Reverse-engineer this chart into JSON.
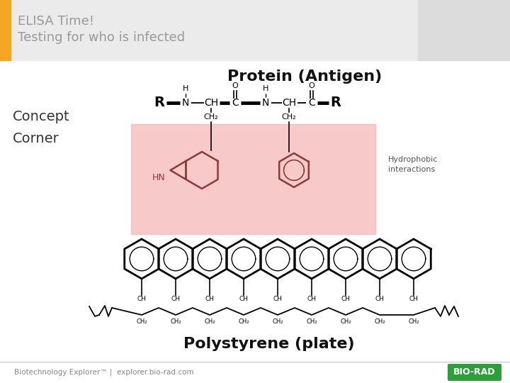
{
  "title_line1": "ELISA Time!",
  "title_line2": "Testing for who is infected",
  "title_bar_color": "#F5A623",
  "title_text_color": "#999999",
  "header_bg_color": "#EBEBEB",
  "concept_corner_text": "Concept\nCorner",
  "protein_antigen_text": "Protein (Antigen)",
  "polystyrene_text": "Polystyrene (plate)",
  "hydrophobic_text": "Hydrophobic\ninteractions",
  "footer_text": "Biotechnology Explorer™ |  explorer.bio-rad.com",
  "biored_text": "BIO-RAD",
  "biored_bg": "#2E9E3A",
  "pink_highlight": "#F5B8B8",
  "bg_color": "#FFFFFF",
  "separator_color": "#CCCCCC"
}
